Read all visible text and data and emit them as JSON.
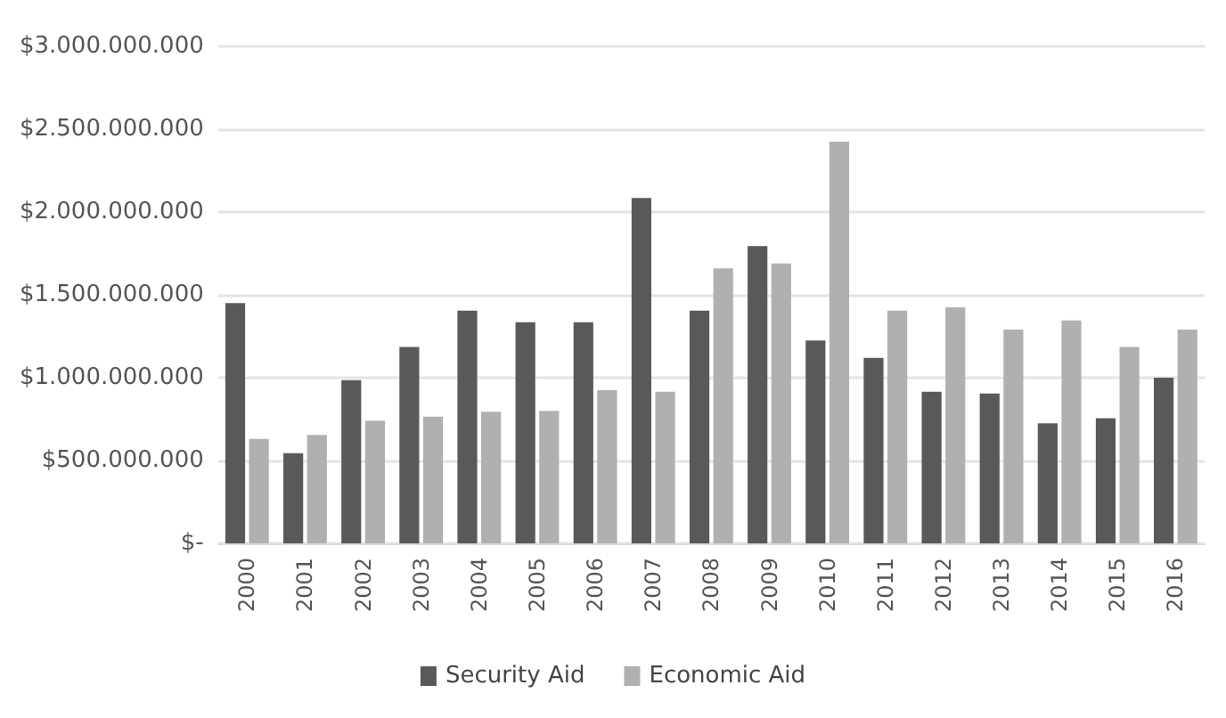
{
  "chart_data": {
    "type": "bar",
    "categories": [
      "2000",
      "2001",
      "2002",
      "2003",
      "2004",
      "2005",
      "2006",
      "2007",
      "2008",
      "2009",
      "2010",
      "2011",
      "2012",
      "2013",
      "2014",
      "2015",
      "2016"
    ],
    "series": [
      {
        "name": "Security Aid",
        "color": "#595959",
        "values": [
          1450000000,
          545000000,
          985000000,
          1185000000,
          1405000000,
          1335000000,
          1335000000,
          2085000000,
          1405000000,
          1795000000,
          1225000000,
          1120000000,
          915000000,
          905000000,
          725000000,
          755000000,
          1000000000
        ]
      },
      {
        "name": "Economic Aid",
        "color": "#b0b0b0",
        "values": [
          630000000,
          655000000,
          740000000,
          765000000,
          795000000,
          800000000,
          925000000,
          915000000,
          1660000000,
          1690000000,
          2425000000,
          1405000000,
          1425000000,
          1290000000,
          1345000000,
          1185000000,
          1290000000
        ]
      }
    ],
    "ylim": [
      0,
      3000000000
    ],
    "yticks": [
      {
        "value": 0,
        "label": "$-"
      },
      {
        "value": 500000000,
        "label": "$500.000.000"
      },
      {
        "value": 1000000000,
        "label": "$1.000.000.000"
      },
      {
        "value": 1500000000,
        "label": "$1.500.000.000"
      },
      {
        "value": 2000000000,
        "label": "$2.000.000.000"
      },
      {
        "value": 2500000000,
        "label": "$2.500.000.000"
      },
      {
        "value": 3000000000,
        "label": "$3.000.000.000"
      }
    ],
    "grid": "y",
    "legend": "bottom"
  }
}
